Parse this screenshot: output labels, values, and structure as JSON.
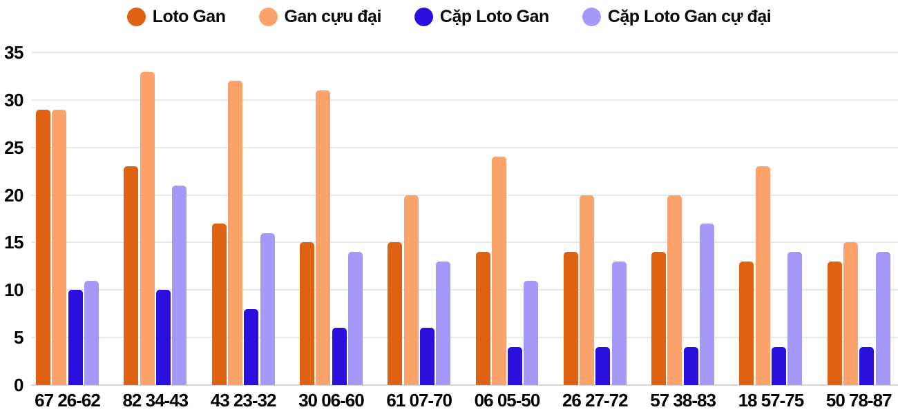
{
  "colors": {
    "background": "#ffffff",
    "gridline": "#e8e8e8",
    "baseline": "#d7d7d7",
    "axis_text": "#000000"
  },
  "chart_data": {
    "type": "bar",
    "title": "",
    "xlabel": "",
    "ylabel": "",
    "categories": [
      "67 26-62",
      "82 34-43",
      "43 23-32",
      "30 06-60",
      "61 07-70",
      "06 05-50",
      "26 27-72",
      "57 38-83",
      "18 57-75",
      "50 78-87"
    ],
    "series": [
      {
        "name": "Loto Gan",
        "color": "#DE6212",
        "values": [
          29,
          23,
          17,
          15,
          15,
          14,
          14,
          14,
          13,
          13
        ]
      },
      {
        "name": "Gan cựu đại",
        "color": "#FCA36C",
        "values": [
          29,
          33,
          32,
          31,
          20,
          24,
          20,
          20,
          23,
          15
        ]
      },
      {
        "name": "Cặp Loto Gan",
        "color": "#2A10DC",
        "values": [
          10,
          10,
          8,
          6,
          6,
          4,
          4,
          4,
          4,
          4
        ]
      },
      {
        "name": "Cặp Loto Gan cự đại",
        "color": "#A499F7",
        "values": [
          11,
          21,
          16,
          14,
          13,
          11,
          13,
          17,
          14,
          14
        ]
      }
    ],
    "ylim": [
      0,
      35
    ],
    "yticks": [
      0,
      5,
      10,
      15,
      20,
      25,
      30,
      35
    ],
    "grid": true,
    "legend_position": "top"
  }
}
